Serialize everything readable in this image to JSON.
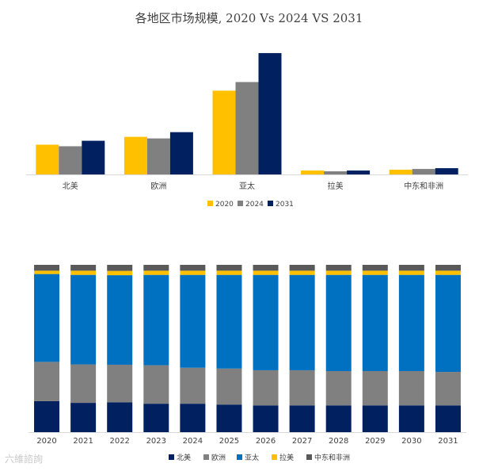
{
  "chart_data": [
    {
      "type": "bar",
      "title": "各地区市场规模, 2020 Vs 2024 VS 2031",
      "categories": [
        "北美",
        "欧洲",
        "亚太",
        "拉美",
        "中东和非洲"
      ],
      "series": [
        {
          "name": "2020",
          "color": "#FFC000",
          "values": [
            38,
            48,
            107,
            5,
            6
          ]
        },
        {
          "name": "2024",
          "color": "#808080",
          "values": [
            36,
            46,
            118,
            4,
            7
          ]
        },
        {
          "name": "2031",
          "color": "#002060",
          "values": [
            43,
            54,
            155,
            5,
            8
          ]
        }
      ],
      "ylim": [
        0,
        160
      ],
      "legend": "bottom"
    },
    {
      "type": "bar",
      "stacked": "percent",
      "categories": [
        "2020",
        "2021",
        "2022",
        "2023",
        "2024",
        "2025",
        "2026",
        "2027",
        "2028",
        "2029",
        "2030",
        "2031"
      ],
      "series": [
        {
          "name": "北美",
          "color": "#002060",
          "values": [
            18.5,
            17.5,
            17.8,
            17.0,
            17.0,
            16.5,
            16.0,
            16.0,
            16.0,
            16.0,
            16.0,
            16.0
          ]
        },
        {
          "name": "欧洲",
          "color": "#808080",
          "values": [
            23.5,
            23.0,
            22.5,
            23.0,
            21.5,
            21.5,
            21.0,
            21.0,
            20.5,
            20.5,
            20.5,
            20.0
          ]
        },
        {
          "name": "亚太",
          "color": "#0070C0",
          "values": [
            52.5,
            53.5,
            53.5,
            54.0,
            55.5,
            56.0,
            57.0,
            57.0,
            57.5,
            57.5,
            57.5,
            58.0
          ]
        },
        {
          "name": "拉美",
          "color": "#FFC000",
          "values": [
            2.0,
            2.5,
            2.6,
            2.5,
            2.5,
            2.5,
            2.5,
            2.5,
            2.5,
            2.5,
            2.5,
            2.5
          ]
        },
        {
          "name": "中东和非洲",
          "color": "#595959",
          "values": [
            3.5,
            3.5,
            3.6,
            3.5,
            3.5,
            3.5,
            3.5,
            3.5,
            3.5,
            3.5,
            3.5,
            3.5
          ]
        }
      ],
      "ylim": [
        0,
        100
      ],
      "legend": "bottom"
    }
  ],
  "watermark": "六維諮詢"
}
